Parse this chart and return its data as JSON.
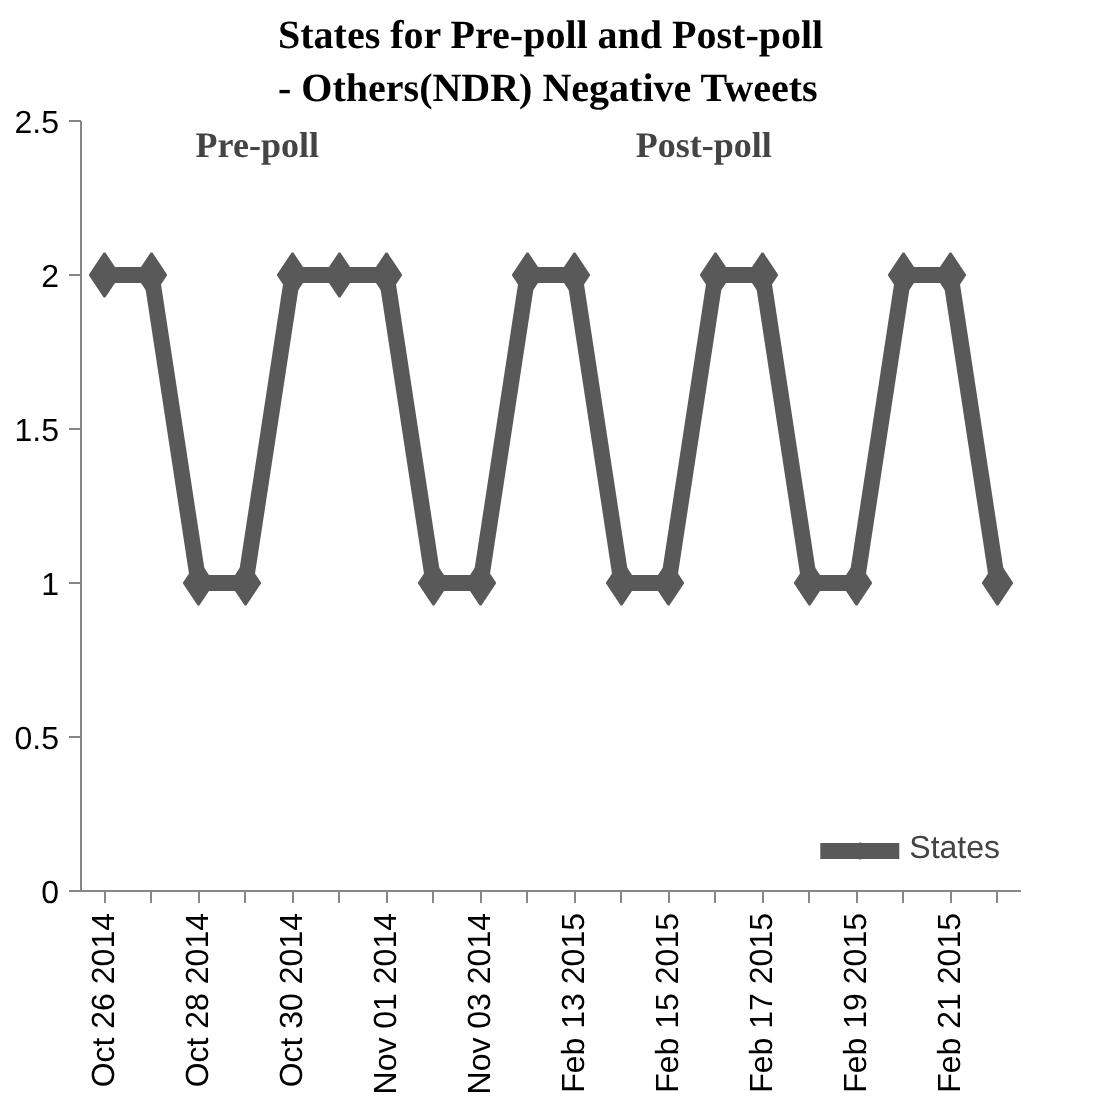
{
  "chart_data": {
    "type": "line",
    "title": "States for Pre-poll and Post-poll\n- Others(NDR) Negative Tweets",
    "categories": [
      "Oct 26 2014",
      null,
      "Oct 28 2014",
      null,
      "Oct 30 2014",
      null,
      "Nov 01 2014",
      null,
      "Nov 03 2014",
      null,
      "Feb 13 2015",
      null,
      "Feb 15 2015",
      null,
      "Feb 17 2015",
      null,
      "Feb 19 2015",
      null,
      "Feb 21 2015",
      null
    ],
    "series": [
      {
        "name": "States",
        "color": "#595959",
        "values": [
          2,
          2,
          1,
          1,
          2,
          2,
          2,
          1,
          1,
          2,
          2,
          1,
          1,
          2,
          2,
          1,
          1,
          2,
          2,
          1
        ]
      }
    ],
    "ylim": [
      0,
      2.5
    ],
    "yticks": [
      0,
      0.5,
      1,
      1.5,
      2,
      2.5
    ],
    "annotations": [
      "Pre-poll",
      "Post-poll"
    ],
    "grid": false,
    "legend": "bottom right",
    "marker": "diamond",
    "line_style": "solid"
  }
}
